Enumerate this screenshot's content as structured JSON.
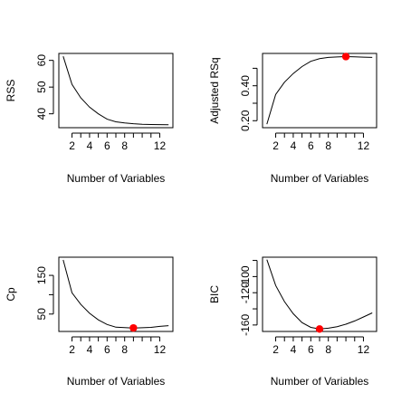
{
  "chart_data": [
    {
      "type": "line",
      "xlabel": "Number of Variables",
      "ylabel": "RSS",
      "x": [
        1,
        2,
        3,
        4,
        5,
        6,
        7,
        8,
        9,
        10,
        11,
        12,
        13
      ],
      "y": [
        61.5,
        51.0,
        46.0,
        42.5,
        40.0,
        38.0,
        37.0,
        36.6,
        36.3,
        36.1,
        36.0,
        35.95,
        35.9
      ],
      "xlim": [
        0.5,
        13.5
      ],
      "ylim": [
        34.8,
        62.6
      ],
      "xticks": [
        "2",
        "4",
        "6",
        "8",
        "12"
      ],
      "xtick_values": [
        2,
        4,
        6,
        8,
        12
      ],
      "yticks": [
        "40",
        "50",
        "60"
      ],
      "ytick_values": [
        40,
        50,
        60
      ],
      "highlight": null
    },
    {
      "type": "line",
      "xlabel": "Number of Variables",
      "ylabel": "Adjusted RSq",
      "x": [
        1,
        2,
        3,
        4,
        5,
        6,
        7,
        8,
        9,
        10,
        11,
        12,
        13
      ],
      "y": [
        0.18,
        0.35,
        0.42,
        0.47,
        0.51,
        0.54,
        0.555,
        0.562,
        0.565,
        0.567,
        0.566,
        0.564,
        0.562
      ],
      "xlim": [
        0.5,
        13.5
      ],
      "ylim": [
        0.16,
        0.585
      ],
      "xticks": [
        "2",
        "4",
        "6",
        "8",
        "12"
      ],
      "xtick_values": [
        2,
        4,
        6,
        8,
        12
      ],
      "yticks": [
        "0.20",
        "0.40"
      ],
      "ytick_values": [
        0.2,
        0.4
      ],
      "extra_ytick_values": [
        0.3,
        0.5
      ],
      "highlight": {
        "x": 10,
        "y": 0.567,
        "color": "#ff0000"
      }
    },
    {
      "type": "line",
      "xlabel": "Number of Variables",
      "ylabel": "Cp",
      "x": [
        1,
        2,
        3,
        4,
        5,
        6,
        7,
        8,
        9,
        10,
        11,
        12,
        13
      ],
      "y": [
        190,
        105,
        75,
        52,
        35,
        23,
        16,
        15,
        14,
        14.5,
        15.5,
        18,
        20
      ],
      "xlim": [
        0.5,
        13.5
      ],
      "ylim": [
        5,
        197
      ],
      "xticks": [
        "2",
        "4",
        "6",
        "8",
        "12"
      ],
      "xtick_values": [
        2,
        4,
        6,
        8,
        12
      ],
      "yticks": [
        "50",
        "150"
      ],
      "ytick_values": [
        50,
        150
      ],
      "extra_ytick_values": [
        100
      ],
      "highlight": {
        "x": 9,
        "y": 14,
        "color": "#ff0000"
      }
    },
    {
      "type": "line",
      "xlabel": "Number of Variables",
      "ylabel": "BIC",
      "x": [
        1,
        2,
        3,
        4,
        5,
        6,
        7,
        8,
        9,
        10,
        11,
        12,
        13
      ],
      "y": [
        -79,
        -111,
        -131,
        -146,
        -157,
        -163,
        -165,
        -164,
        -162,
        -159,
        -155,
        -150,
        -145
      ],
      "xlim": [
        0.5,
        13.5
      ],
      "ylim": [
        -168,
        -76
      ],
      "xticks": [
        "2",
        "4",
        "6",
        "8",
        "12"
      ],
      "xtick_values": [
        2,
        4,
        6,
        8,
        12
      ],
      "yticks": [
        "-160",
        "-120",
        "-100"
      ],
      "ytick_values": [
        -160,
        -120,
        -100
      ],
      "extra_ytick_values": [
        -140,
        -80
      ],
      "highlight": {
        "x": 7,
        "y": -165,
        "color": "#ff0000"
      }
    }
  ]
}
